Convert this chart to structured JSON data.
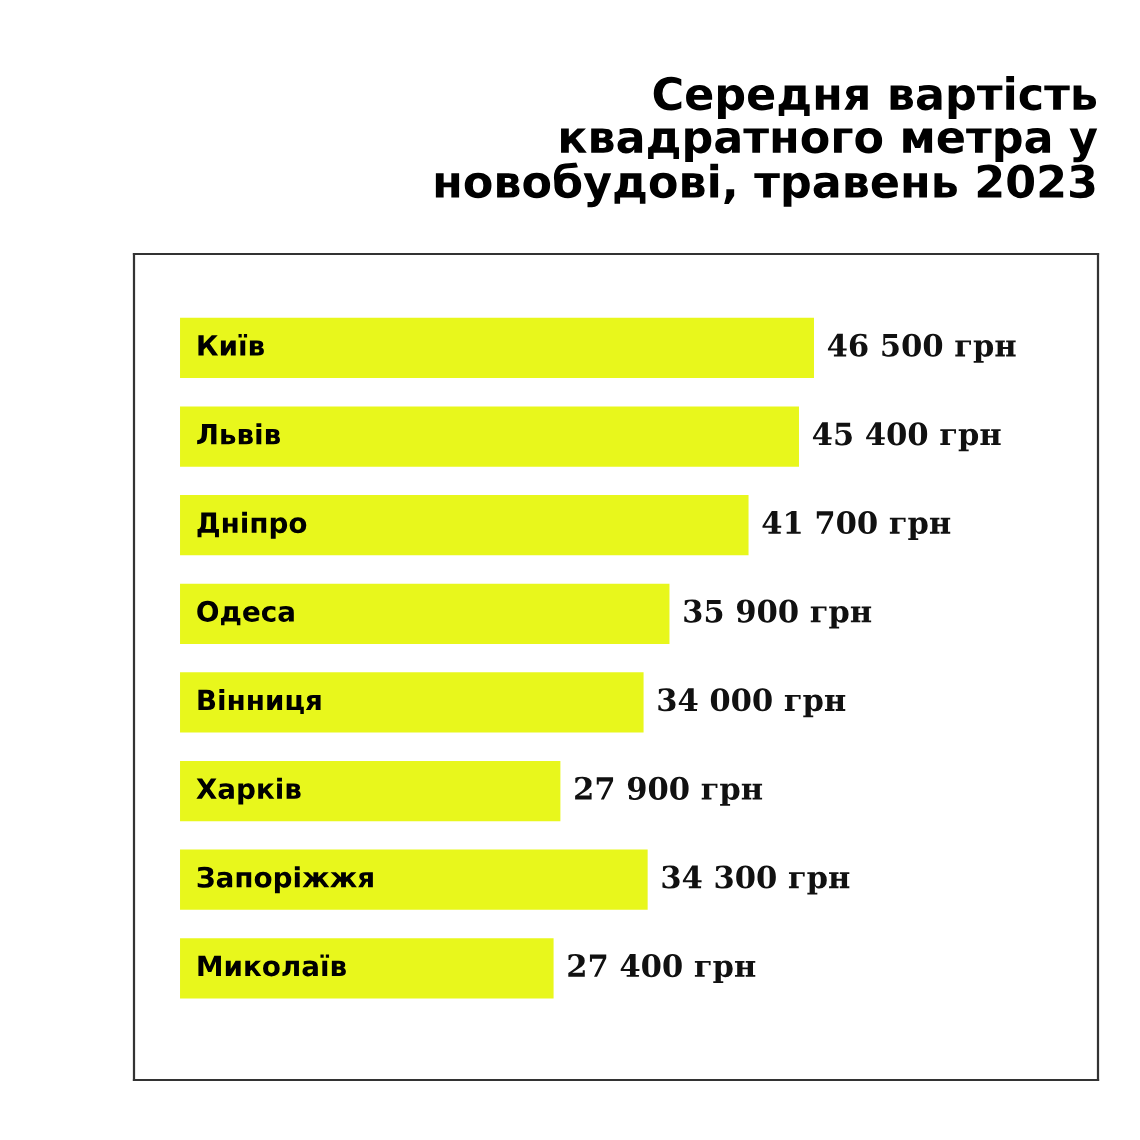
{
  "chart_data": {
    "type": "bar",
    "orientation": "horizontal",
    "title": "Середня вартість\nквадратного метра у\nновобудові, травень 2023",
    "categories": [
      "Київ",
      "Львів",
      "Дніпро",
      "Одеса",
      "Вінниця",
      "Харків",
      "Запоріжжя",
      "Миколаїв"
    ],
    "values": [
      46500,
      45400,
      41700,
      35900,
      34000,
      27900,
      34300,
      27400
    ],
    "value_labels": [
      "46 500 грн",
      "45 400 грн",
      "41 700 грн",
      "35 900 грн",
      "34 000 грн",
      "27 900 грн",
      "34 300 грн",
      "27 400 грн"
    ],
    "color": "#e8f71c"
  }
}
